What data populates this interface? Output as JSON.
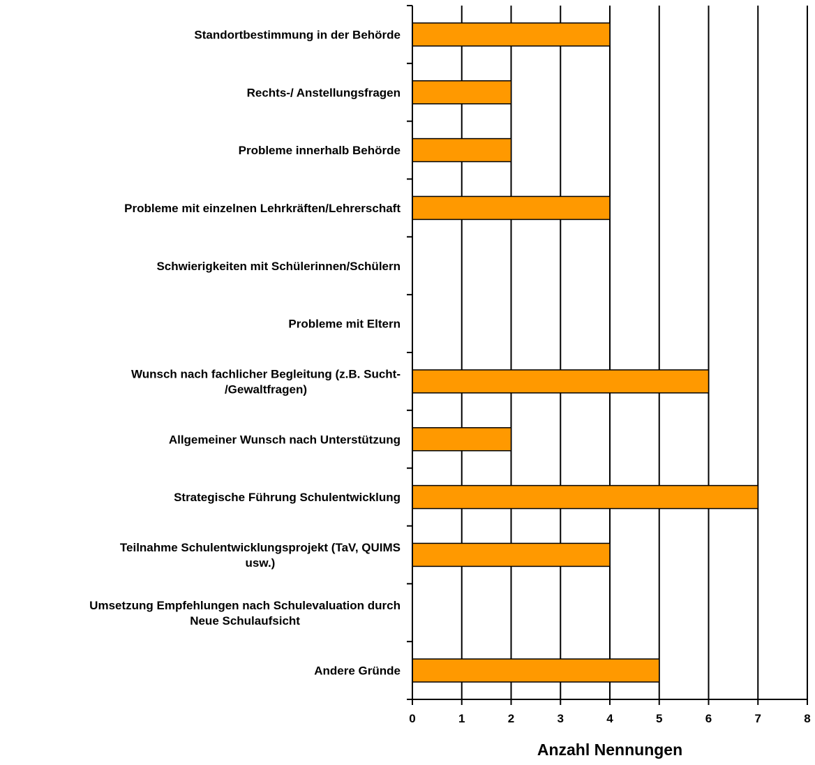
{
  "chart_data": {
    "type": "bar",
    "orientation": "horizontal",
    "categories": [
      [
        "Standortbestimmung in der Behörde"
      ],
      [
        "Rechts-/ Anstellungsfragen"
      ],
      [
        "Probleme innerhalb Behörde"
      ],
      [
        "Probleme mit einzelnen Lehrkräften/Lehrerschaft"
      ],
      [
        "Schwierigkeiten mit Schülerinnen/Schülern"
      ],
      [
        "Probleme mit Eltern"
      ],
      [
        "Wunsch nach fachlicher Begleitung (z.B. Sucht-",
        "/Gewaltfragen)"
      ],
      [
        "Allgemeiner Wunsch nach Unterstützung"
      ],
      [
        "Strategische Führung Schulentwicklung"
      ],
      [
        "Teilnahme Schulentwicklungsprojekt (TaV, QUIMS",
        "usw.)"
      ],
      [
        "Umsetzung Empfehlungen nach Schulevaluation durch",
        "Neue Schulaufsicht"
      ],
      [
        "Andere Gründe"
      ]
    ],
    "values": [
      4,
      2,
      2,
      4,
      0,
      0,
      6,
      2,
      7,
      4,
      0,
      5
    ],
    "xlabel": "Anzahl Nennungen",
    "xlim": [
      0,
      8
    ],
    "xticks": [
      "0",
      "1",
      "2",
      "3",
      "4",
      "5",
      "6",
      "7",
      "8"
    ],
    "grid": "vertical",
    "legend": "none",
    "bar_color": "#FF9900",
    "bar_edge_color": "#000000"
  }
}
